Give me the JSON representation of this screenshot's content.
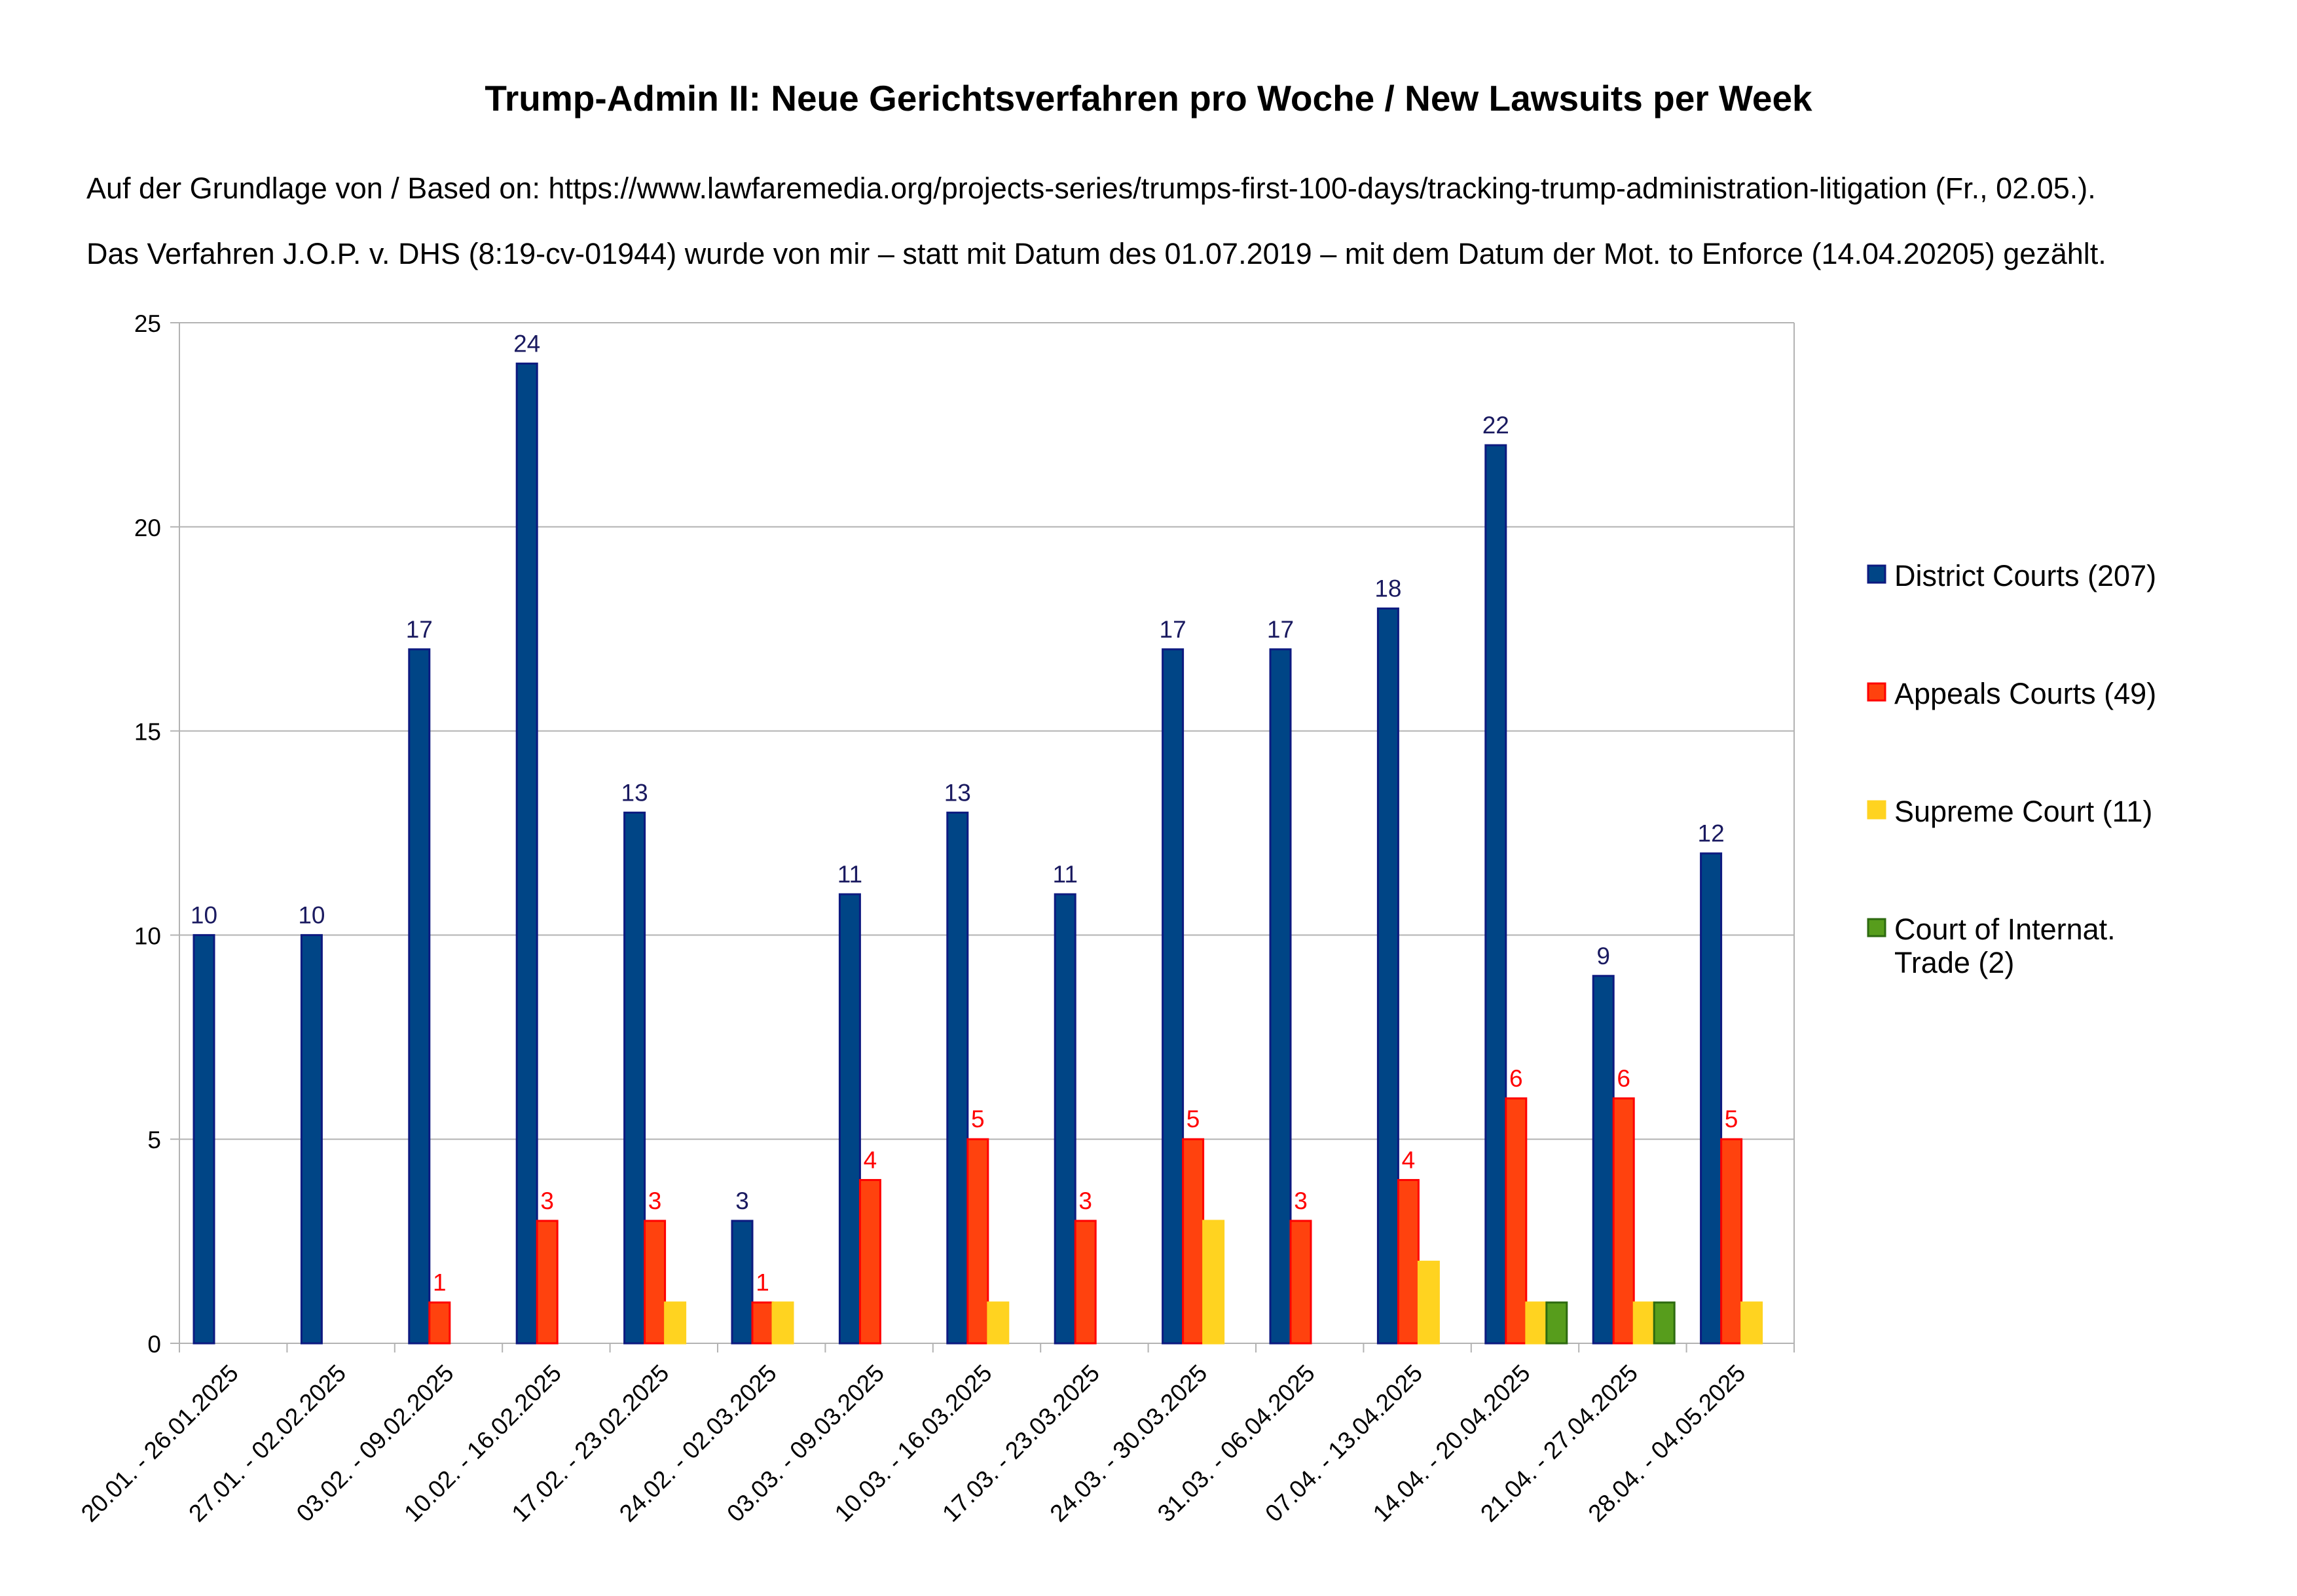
{
  "chart_data": {
    "type": "bar",
    "title": "Trump-Admin II: Neue Gerichtsverfahren pro Woche / New Lawsuits per Week",
    "subtitle_lines": [
      "Auf der Grundlage von / Based on: https://www.lawfaremedia.org/projects-series/trumps-first-100-days/tracking-trump-administration-litigation (Fr., 02.05.).",
      "Das Verfahren J.O.P. v. DHS (8:19-cv-01944) wurde von mir – statt mit Datum des 01.07.2019 – mit dem Datum der Mot. to Enforce (14.04.20205) gezählt."
    ],
    "xlabel": "",
    "ylabel": "",
    "ylim": [
      0,
      25
    ],
    "yticks": [
      "0",
      "5",
      "10",
      "15",
      "20",
      "25"
    ],
    "grid": true,
    "legend_position": "right",
    "categories": [
      "20.01. - 26.01.2025",
      "27.01. - 02.02.2025",
      "03.02. - 09.02.2025",
      "10.02. - 16.02.2025",
      "17.02. - 23.02.2025",
      "24.02. - 02.03.2025",
      "03.03. - 09.03.2025",
      "10.03. - 16.03.2025",
      "17.03. - 23.03.2025",
      "24.03. - 30.03.2025",
      "31.03. - 06.04.2025",
      "07.04. - 13.04.2025",
      "14.04. - 20.04.2025",
      "21.04. - 27.04.2025",
      "28.04. - 04.05.2025"
    ],
    "series": [
      {
        "name": "District Courts (207)",
        "color": "#004586",
        "border": "#0d1a80",
        "label_color": "#1a1a60",
        "show_labels": true,
        "values": [
          10,
          10,
          17,
          24,
          13,
          3,
          11,
          13,
          11,
          17,
          17,
          18,
          22,
          9,
          12
        ]
      },
      {
        "name": "Appeals Courts (49)",
        "color": "#ff420e",
        "border": "#ff0000",
        "label_color": "#ff0000",
        "show_labels": true,
        "values": [
          0,
          0,
          1,
          3,
          3,
          1,
          4,
          5,
          3,
          5,
          3,
          4,
          6,
          6,
          5
        ]
      },
      {
        "name": "Supreme Court (11)",
        "color": "#ffd320",
        "border": "#ffd320",
        "label_color": "#000000",
        "show_labels": false,
        "values": [
          0,
          0,
          0,
          0,
          1,
          1,
          0,
          1,
          0,
          3,
          0,
          2,
          1,
          1,
          1
        ]
      },
      {
        "name": "Court of Internat. Trade (2)",
        "color": "#579d1c",
        "border": "#2d6a10",
        "label_color": "#000000",
        "show_labels": false,
        "values": [
          0,
          0,
          0,
          0,
          0,
          0,
          0,
          0,
          0,
          0,
          0,
          0,
          1,
          1,
          0
        ]
      }
    ]
  }
}
